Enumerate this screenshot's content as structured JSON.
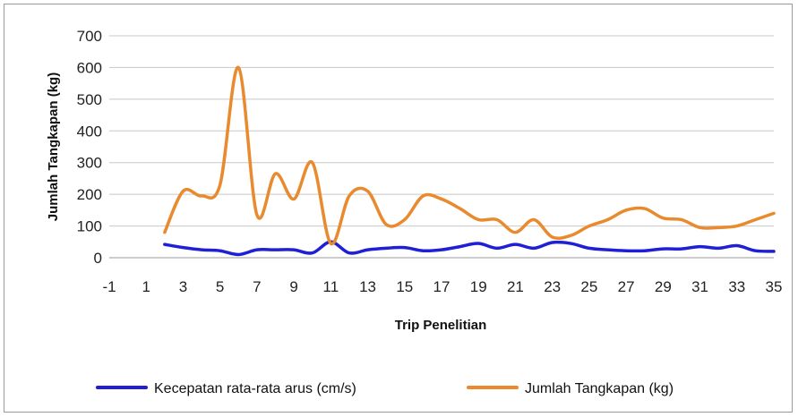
{
  "chart_data": {
    "type": "line",
    "xlabel": "Trip Penelitian",
    "ylabel": "Jumlah Tangkapan (kg)",
    "ylim": [
      0,
      700
    ],
    "yticks": [
      0,
      100,
      200,
      300,
      400,
      500,
      600,
      700
    ],
    "xlim": [
      -1,
      35
    ],
    "xticks": [
      -1,
      1,
      3,
      5,
      7,
      9,
      11,
      13,
      15,
      17,
      19,
      21,
      23,
      25,
      27,
      29,
      31,
      33,
      35
    ],
    "grid": "horizontal",
    "legend_position": "bottom",
    "series": [
      {
        "name": "Kecepatan rata-rata arus (cm/s)",
        "color": "#1f1fd6",
        "x": [
          2,
          3,
          4,
          5,
          6,
          7,
          8,
          9,
          10,
          11,
          12,
          13,
          14,
          15,
          16,
          17,
          18,
          19,
          20,
          21,
          22,
          23,
          24,
          25,
          26,
          27,
          28,
          29,
          30,
          31,
          32,
          33,
          34,
          35
        ],
        "y": [
          42,
          32,
          25,
          22,
          10,
          25,
          25,
          25,
          15,
          50,
          15,
          25,
          30,
          32,
          22,
          25,
          35,
          45,
          30,
          42,
          30,
          48,
          45,
          30,
          25,
          22,
          22,
          28,
          28,
          35,
          30,
          38,
          22,
          20
        ]
      },
      {
        "name": "Jumlah Tangkapan (kg)",
        "color": "#e88a2d",
        "x": [
          2,
          3,
          4,
          5,
          6,
          7,
          8,
          9,
          10,
          11,
          12,
          13,
          14,
          15,
          16,
          17,
          18,
          19,
          20,
          21,
          22,
          23,
          24,
          25,
          26,
          27,
          28,
          29,
          30,
          31,
          32,
          33,
          34,
          35
        ],
        "y": [
          80,
          210,
          195,
          230,
          600,
          135,
          265,
          185,
          300,
          45,
          195,
          210,
          105,
          120,
          195,
          185,
          155,
          120,
          120,
          80,
          120,
          65,
          70,
          100,
          120,
          150,
          155,
          125,
          120,
          95,
          95,
          100,
          120,
          140
        ]
      }
    ]
  }
}
